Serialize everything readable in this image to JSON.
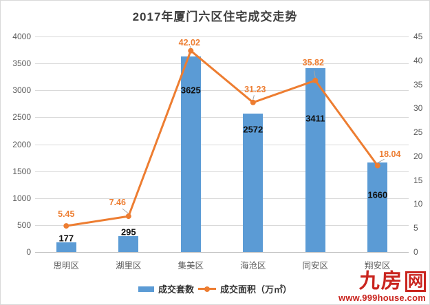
{
  "title": "2017年厦门六区住宅成交走势",
  "legend": {
    "bars": "成交套数",
    "line": "成交面积（万㎡）"
  },
  "watermark": {
    "logo_main": "九房",
    "logo_boxed": "网",
    "url": "www.999house.com"
  },
  "colors": {
    "bar": "#5b9bd5",
    "line": "#ed7d31",
    "grid": "#d9d9d9",
    "axis_line": "#bfbfbf",
    "axis_text": "#595959",
    "title_text": "#3f3f3f",
    "bar_label": "#111111",
    "leader": "#a6a6a6",
    "watermark_red": "#c9241e"
  },
  "chart_data": {
    "type": "combo-bar-line",
    "title": "2017年厦门六区住宅成交走势",
    "categories": [
      "思明区",
      "湖里区",
      "集美区",
      "海沧区",
      "同安区",
      "翔安区"
    ],
    "series": [
      {
        "name": "成交套数",
        "type": "bar",
        "axis": "left",
        "color": "#5b9bd5",
        "values": [
          177,
          295,
          3625,
          2572,
          3411,
          1660
        ]
      },
      {
        "name": "成交面积（万㎡）",
        "type": "line",
        "axis": "right",
        "color": "#ed7d31",
        "values": [
          5.45,
          7.46,
          42.02,
          31.23,
          35.82,
          18.04
        ]
      }
    ],
    "left_axis": {
      "min": 0,
      "max": 4000,
      "step": 500
    },
    "right_axis": {
      "min": 0,
      "max": 45,
      "step": 5
    },
    "grid": true,
    "legend_position": "bottom",
    "data_labels": true
  }
}
